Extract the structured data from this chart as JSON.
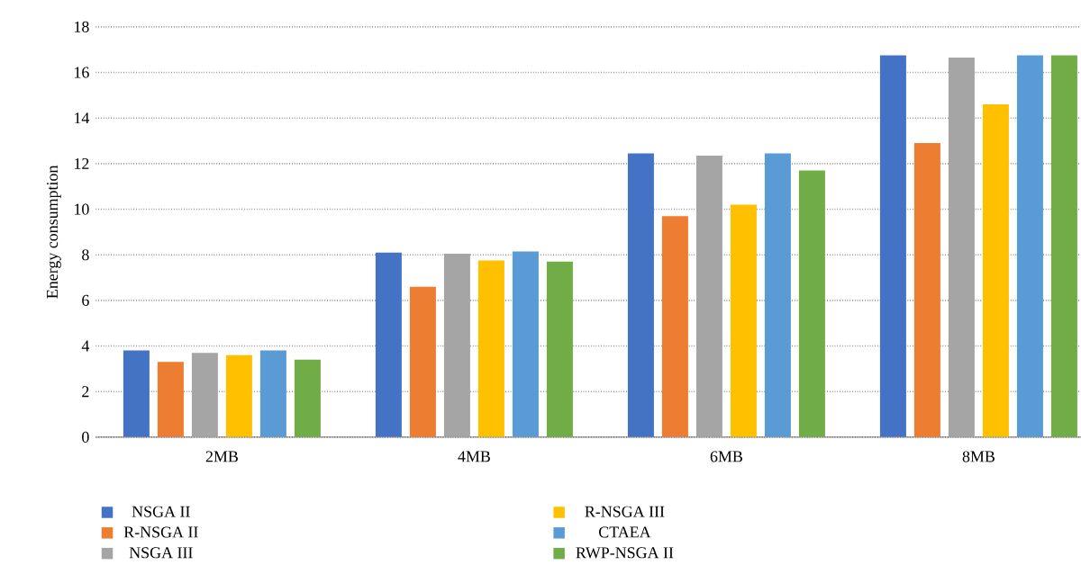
{
  "chart_data": {
    "type": "bar",
    "ylabel": "Energy consumption",
    "categories": [
      "2MB",
      "4MB",
      "6MB",
      "8MB"
    ],
    "series": [
      {
        "name": "NSGA II",
        "color": "#4472c4",
        "values": [
          3.8,
          8.1,
          12.45,
          16.75
        ]
      },
      {
        "name": "R-NSGA II",
        "color": "#ed7d31",
        "values": [
          3.3,
          6.6,
          9.7,
          12.9
        ]
      },
      {
        "name": "NSGA III",
        "color": "#a5a5a5",
        "values": [
          3.7,
          8.05,
          12.35,
          16.65
        ]
      },
      {
        "name": "R-NSGA III",
        "color": "#ffc000",
        "values": [
          3.6,
          7.75,
          10.2,
          14.6
        ]
      },
      {
        "name": "CTAEA",
        "color": "#5b9bd5",
        "values": [
          3.8,
          8.15,
          12.45,
          16.75
        ]
      },
      {
        "name": "RWP-NSGA II",
        "color": "#70ad47",
        "values": [
          3.4,
          7.7,
          11.7,
          16.75
        ]
      }
    ],
    "ylim": [
      0,
      18
    ],
    "yticks": [
      0,
      2,
      4,
      6,
      8,
      10,
      12,
      14,
      16,
      18
    ],
    "grid": "y",
    "legend": "bottom"
  }
}
